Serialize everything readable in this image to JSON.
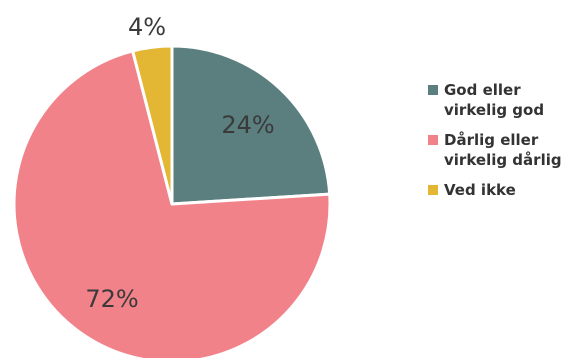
{
  "chart_data": {
    "type": "pie",
    "slices": [
      {
        "label": "God eller\nvirkelig god",
        "value": 24,
        "display": "24%",
        "color": "#5b7f7f"
      },
      {
        "label": "Dårlig eller\nvirkelig dårlig",
        "value": 72,
        "display": "72%",
        "color": "#f2828a"
      },
      {
        "label": "Ved ikke",
        "value": 4,
        "display": "4%",
        "color": "#e3b733"
      }
    ],
    "start_angle_deg": 0,
    "direction": "clockwise",
    "legend_position": "right"
  }
}
